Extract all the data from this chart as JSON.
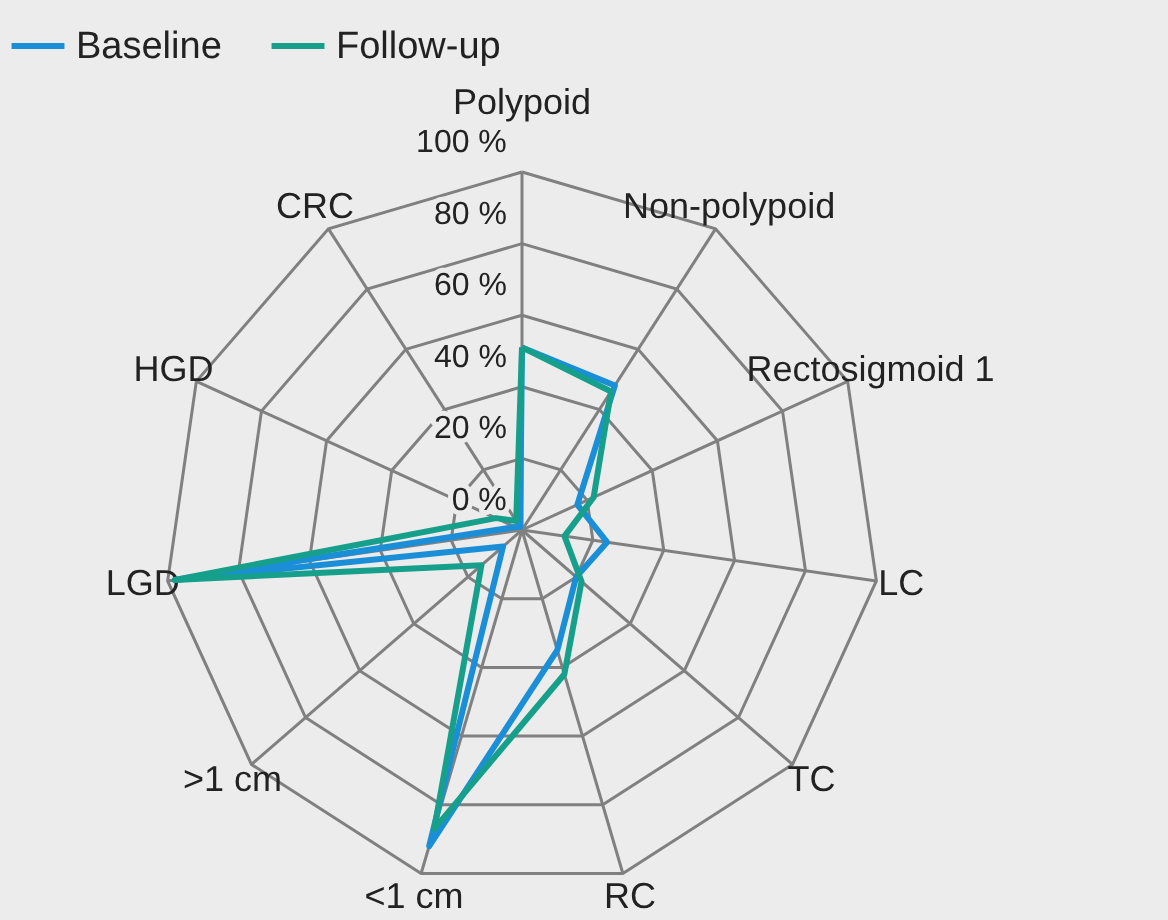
{
  "chart_data": {
    "type": "radar",
    "categories": [
      "Polypoid",
      "Non-polypoid",
      "Rectosigmoid 1",
      "LC",
      "TC",
      "RC",
      "<1 cm",
      ">1 cm",
      "LGD",
      "HGD",
      "CRC"
    ],
    "series": [
      {
        "name": "Baseline",
        "color": "#1a8fd8",
        "values": [
          51,
          48,
          17,
          24,
          20,
          35,
          92,
          7,
          98,
          2,
          1
        ]
      },
      {
        "name": "Follow-up",
        "color": "#16a08c",
        "values": [
          51,
          46,
          22,
          12,
          22,
          42,
          87,
          15,
          98,
          8,
          3
        ]
      }
    ],
    "ylim": [
      0,
      100
    ],
    "yticks": [
      {
        "value": 0,
        "label": "0 %"
      },
      {
        "value": 20,
        "label": "20 %"
      },
      {
        "value": 40,
        "label": "40 %"
      },
      {
        "value": 60,
        "label": "60 %"
      },
      {
        "value": 80,
        "label": "80 %"
      },
      {
        "value": 100,
        "label": "100 %"
      }
    ],
    "legend": "top left"
  }
}
